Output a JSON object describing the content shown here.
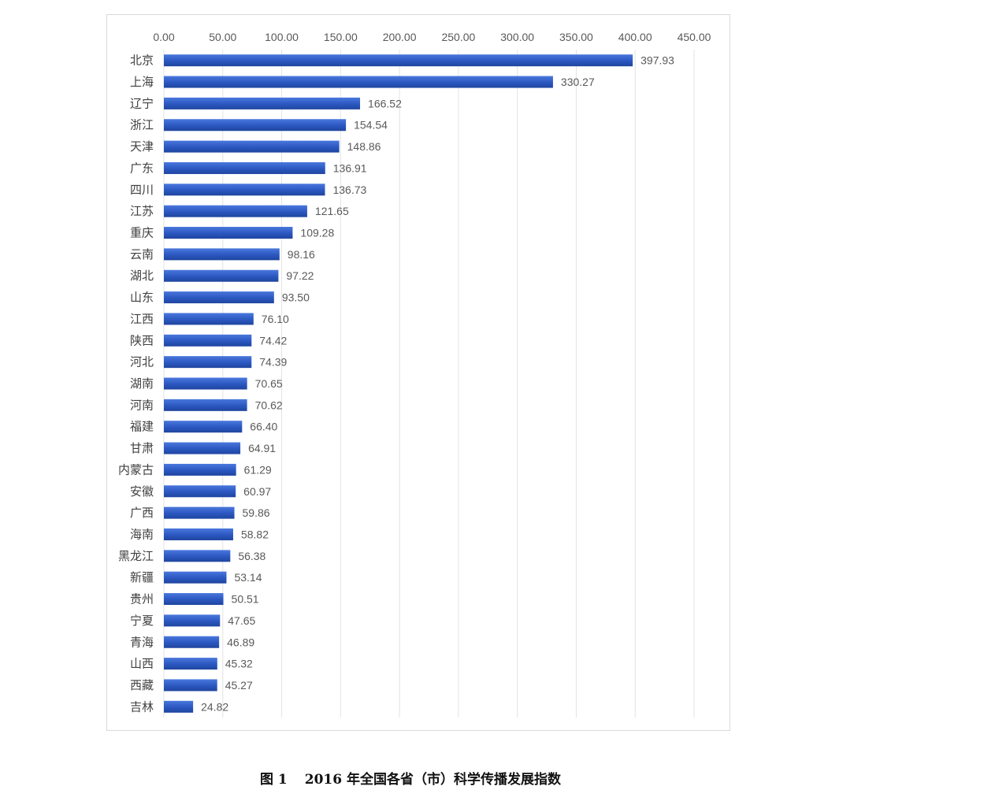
{
  "chart_data": {
    "type": "bar",
    "orientation": "horizontal",
    "title": "",
    "xlabel": "",
    "ylabel": "",
    "xlim": [
      0,
      450
    ],
    "x_ticks": [
      "0.00",
      "50.00",
      "100.00",
      "150.00",
      "200.00",
      "250.00",
      "300.00",
      "350.00",
      "400.00",
      "450.00"
    ],
    "x_axis_position": "top",
    "grid": true,
    "legend": "none",
    "bar_color": "#2B57C0",
    "categories": [
      "北京",
      "上海",
      "辽宁",
      "浙江",
      "天津",
      "广东",
      "四川",
      "江苏",
      "重庆",
      "云南",
      "湖北",
      "山东",
      "江西",
      "陕西",
      "河北",
      "湖南",
      "河南",
      "福建",
      "甘肃",
      "内蒙古",
      "安徽",
      "广西",
      "海南",
      "黑龙江",
      "新疆",
      "贵州",
      "宁夏",
      "青海",
      "山西",
      "西藏",
      "吉林"
    ],
    "values": [
      397.93,
      330.27,
      166.52,
      154.54,
      148.86,
      136.91,
      136.73,
      121.65,
      109.28,
      98.16,
      97.22,
      93.5,
      76.1,
      74.42,
      74.39,
      70.65,
      70.62,
      66.4,
      64.91,
      61.29,
      60.97,
      59.86,
      58.82,
      56.38,
      53.14,
      50.51,
      47.65,
      46.89,
      45.32,
      45.27,
      24.82
    ],
    "value_labels": [
      "397.93",
      "330.27",
      "166.52",
      "154.54",
      "148.86",
      "136.91",
      "136.73",
      "121.65",
      "109.28",
      "98.16",
      "97.22",
      "93.50",
      "76.10",
      "74.42",
      "74.39",
      "70.65",
      "70.62",
      "66.40",
      "64.91",
      "61.29",
      "60.97",
      "59.86",
      "58.82",
      "56.38",
      "53.14",
      "50.51",
      "47.65",
      "46.89",
      "45.32",
      "45.27",
      "24.82"
    ]
  },
  "caption": {
    "figure_number": "图 1",
    "text": "2016 年全国各省（市）科学传播发展指数"
  }
}
